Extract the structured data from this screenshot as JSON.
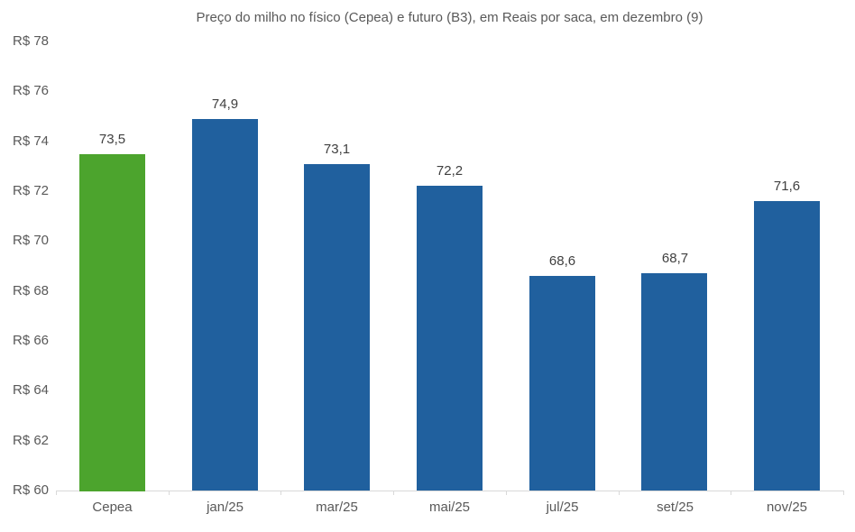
{
  "chart_data": {
    "type": "bar",
    "title": "Preço do milho no físico (Cepea) e futuro (B3), em Reais por saca, em dezembro (9)",
    "categories": [
      "Cepea",
      "jan/25",
      "mar/25",
      "mai/25",
      "jul/25",
      "set/25",
      "nov/25"
    ],
    "values": [
      73.5,
      74.9,
      73.1,
      72.2,
      68.6,
      68.7,
      71.6
    ],
    "value_labels": [
      "73,5",
      "74,9",
      "73,1",
      "72,2",
      "68,6",
      "68,7",
      "71,6"
    ],
    "series_colors": [
      "#4CA42D",
      "#20609E",
      "#20609E",
      "#20609E",
      "#20609E",
      "#20609E",
      "#20609E"
    ],
    "xlabel": "",
    "ylabel": "",
    "ylim": [
      60,
      78
    ],
    "ytick_step": 2,
    "ytick_labels": [
      "R$ 60",
      "R$ 62",
      "R$ 64",
      "R$ 66",
      "R$ 68",
      "R$ 70",
      "R$ 72",
      "R$ 74",
      "R$ 76",
      "R$ 78"
    ],
    "grid": false,
    "legend": false,
    "colors": {
      "cepea_bar": "#4CA42D",
      "futuro_bar": "#20609E",
      "axis_line": "#D9D9D9",
      "tick_label": "#595959",
      "value_label": "#404040",
      "title": "#595959",
      "background": "#FFFFFF"
    }
  }
}
